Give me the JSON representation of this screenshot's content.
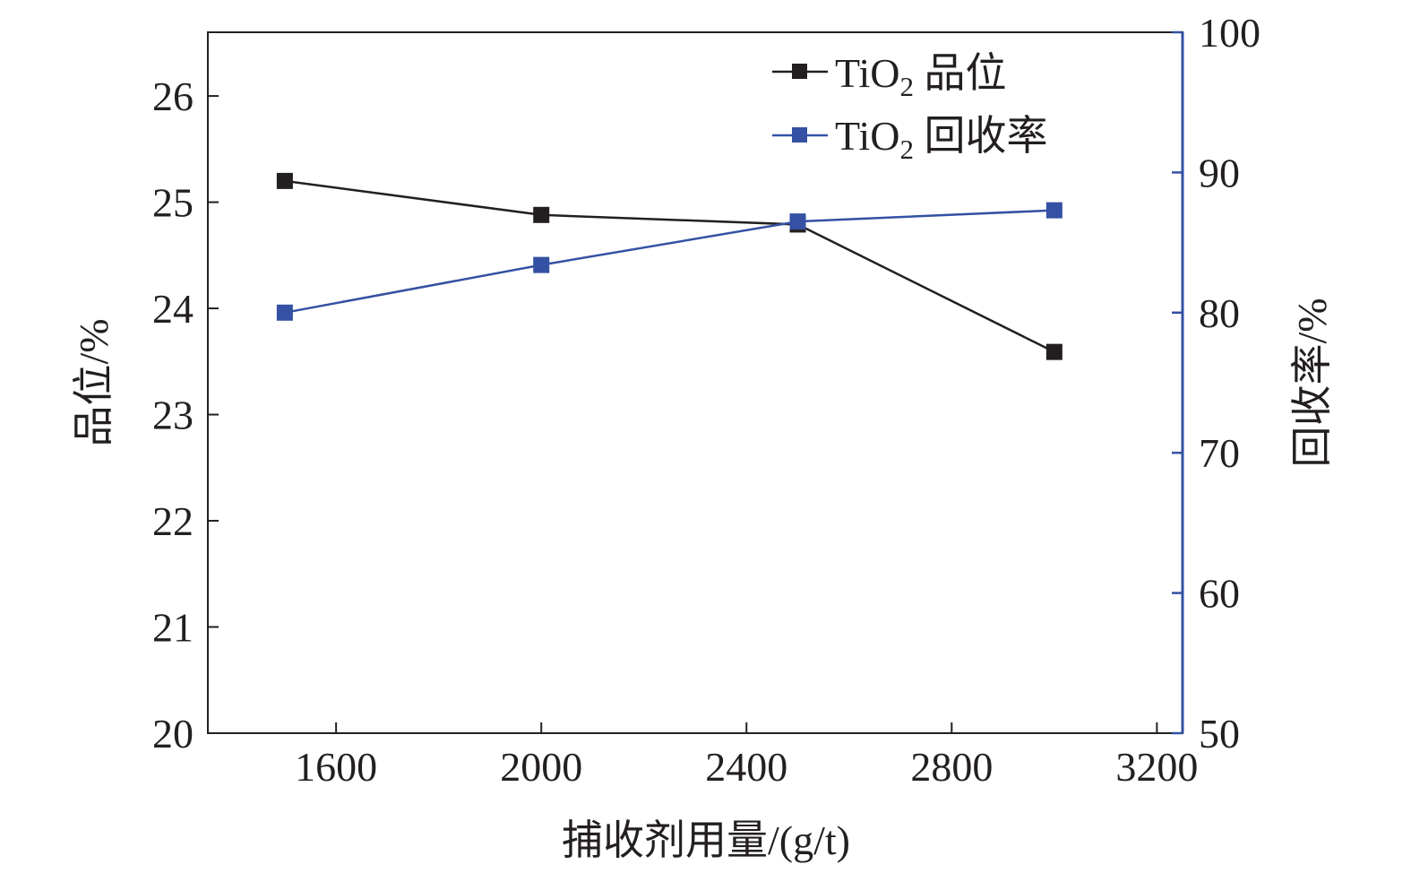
{
  "chart_data": {
    "type": "line",
    "xlabel": "捕收剂用量/(g/t)",
    "ylabel_left": "品位/%",
    "ylabel_right": "回收率/%",
    "xlim": [
      1350,
      3250
    ],
    "ylim_left": [
      20,
      26.6
    ],
    "ylim_right": [
      50,
      100
    ],
    "x_ticks": [
      1600,
      2000,
      2400,
      2800,
      3200
    ],
    "y_left_ticks": [
      20,
      21,
      22,
      23,
      24,
      25,
      26
    ],
    "y_right_ticks": [
      50,
      60,
      70,
      80,
      90,
      100
    ],
    "legend_position": "top-right",
    "grid": false,
    "series": [
      {
        "name": "TiO2 品位",
        "legend_main": "TiO",
        "legend_sub": "2",
        "legend_rest": " 品位",
        "axis": "left",
        "color": "#231f20",
        "x": [
          1500,
          2000,
          2500,
          3000
        ],
        "y": [
          25.2,
          24.88,
          24.79,
          23.59
        ]
      },
      {
        "name": "TiO2 回收率",
        "legend_main": "TiO",
        "legend_sub": "2",
        "legend_rest": " 回收率",
        "axis": "right",
        "color": "#3451a3",
        "x": [
          1500,
          2000,
          2500,
          3000
        ],
        "y": [
          80.0,
          83.4,
          86.5,
          87.3
        ]
      }
    ],
    "right_axis_color": "#3451a3"
  }
}
